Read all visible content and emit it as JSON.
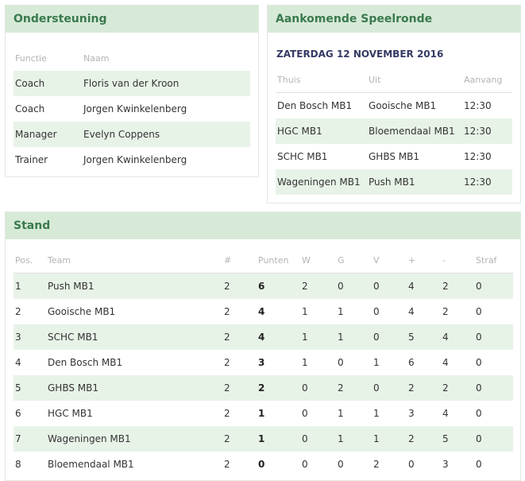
{
  "support": {
    "title": "Ondersteuning",
    "headers": {
      "function": "Functie",
      "name": "Naam"
    },
    "rows": [
      {
        "function": "Coach",
        "name": "Floris van der Kroon"
      },
      {
        "function": "Coach",
        "name": "Jorgen Kwinkelenberg"
      },
      {
        "function": "Manager",
        "name": "Evelyn Coppens"
      },
      {
        "function": "Trainer",
        "name": "Jorgen Kwinkelenberg"
      }
    ]
  },
  "round": {
    "title": "Aankomende Speelronde",
    "date": "ZATERDAG 12 NOVEMBER 2016",
    "headers": {
      "home": "Thuis",
      "away": "Uit",
      "start": "Aanvang"
    },
    "matches": [
      {
        "home": "Den Bosch MB1",
        "away": "Gooische MB1",
        "start": "12:30"
      },
      {
        "home": "HGC MB1",
        "away": "Bloemendaal MB1",
        "start": "12:30"
      },
      {
        "home": "SCHC MB1",
        "away": "GHBS MB1",
        "start": "12:30"
      },
      {
        "home": "Wageningen MB1",
        "away": "Push MB1",
        "start": "12:30"
      }
    ]
  },
  "stand": {
    "title": "Stand",
    "headers": {
      "pos": "Pos.",
      "team": "Team",
      "played": "#",
      "points": "Punten",
      "w": "W",
      "g": "G",
      "v": "V",
      "plus": "+",
      "minus": "-",
      "straf": "Straf"
    },
    "rows": [
      {
        "pos": "1",
        "team": "Push MB1",
        "played": "2",
        "points": "6",
        "w": "2",
        "g": "0",
        "v": "0",
        "plus": "4",
        "minus": "2",
        "straf": "0"
      },
      {
        "pos": "2",
        "team": "Gooische MB1",
        "played": "2",
        "points": "4",
        "w": "1",
        "g": "1",
        "v": "0",
        "plus": "4",
        "minus": "2",
        "straf": "0"
      },
      {
        "pos": "3",
        "team": "SCHC MB1",
        "played": "2",
        "points": "4",
        "w": "1",
        "g": "1",
        "v": "0",
        "plus": "5",
        "minus": "4",
        "straf": "0"
      },
      {
        "pos": "4",
        "team": "Den Bosch MB1",
        "played": "2",
        "points": "3",
        "w": "1",
        "g": "0",
        "v": "1",
        "plus": "6",
        "minus": "4",
        "straf": "0"
      },
      {
        "pos": "5",
        "team": "GHBS MB1",
        "played": "2",
        "points": "2",
        "w": "0",
        "g": "2",
        "v": "0",
        "plus": "2",
        "minus": "2",
        "straf": "0"
      },
      {
        "pos": "6",
        "team": "HGC MB1",
        "played": "2",
        "points": "1",
        "w": "0",
        "g": "1",
        "v": "1",
        "plus": "3",
        "minus": "4",
        "straf": "0"
      },
      {
        "pos": "7",
        "team": "Wageningen MB1",
        "played": "2",
        "points": "1",
        "w": "0",
        "g": "1",
        "v": "1",
        "plus": "2",
        "minus": "5",
        "straf": "0"
      },
      {
        "pos": "8",
        "team": "Bloemendaal MB1",
        "played": "2",
        "points": "0",
        "w": "0",
        "g": "0",
        "v": "2",
        "plus": "0",
        "minus": "3",
        "straf": "0"
      }
    ]
  }
}
